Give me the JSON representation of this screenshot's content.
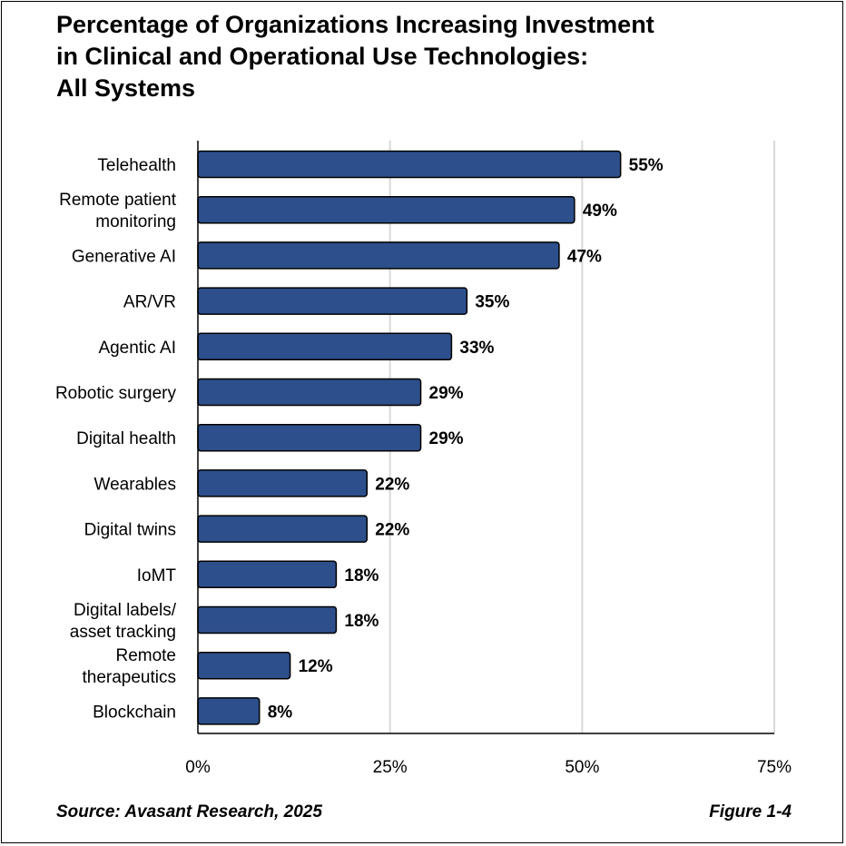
{
  "chart_data": {
    "type": "bar",
    "orientation": "horizontal",
    "title_lines": [
      "Percentage of Organizations Increasing Investment",
      "in Clinical and Operational Use Technologies:",
      "All Systems"
    ],
    "categories": [
      [
        "Telehealth"
      ],
      [
        "Remote patient",
        "monitoring"
      ],
      [
        "Generative AI"
      ],
      [
        "AR/VR"
      ],
      [
        "Agentic AI"
      ],
      [
        "Robotic surgery"
      ],
      [
        "Digital health"
      ],
      [
        "Wearables"
      ],
      [
        "Digital twins"
      ],
      [
        "IoMT"
      ],
      [
        "Digital labels/",
        "asset tracking"
      ],
      [
        "Remote",
        "therapeutics"
      ],
      [
        "Blockchain"
      ]
    ],
    "values": [
      55,
      49,
      47,
      35,
      33,
      29,
      29,
      22,
      22,
      18,
      18,
      12,
      8
    ],
    "value_labels": [
      "55%",
      "49%",
      "47%",
      "35%",
      "33%",
      "29%",
      "29%",
      "22%",
      "22%",
      "18%",
      "18%",
      "12%",
      "8%"
    ],
    "xlim": [
      0,
      75
    ],
    "x_ticks": [
      0,
      25,
      50,
      75
    ],
    "x_tick_labels": [
      "0%",
      "25%",
      "50%",
      "75%"
    ],
    "grid": true,
    "bar_color": "#2d4f8b",
    "legend": "none"
  },
  "footer": {
    "source": "Source: Avasant Research, 2025",
    "figure": "Figure 1-4"
  }
}
